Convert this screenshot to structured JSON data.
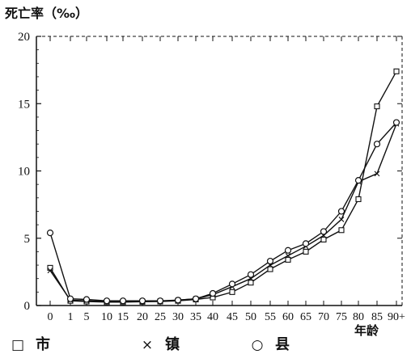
{
  "chart_data": {
    "type": "line",
    "ylabel": "死亡率（‰）",
    "xlabel": "年龄",
    "ylim": [
      0,
      20
    ],
    "yticks": [
      "0",
      "5",
      "10",
      "15",
      "20"
    ],
    "x": [
      "0",
      "1",
      "5",
      "10",
      "15",
      "20",
      "25",
      "30",
      "35",
      "40",
      "45",
      "50",
      "55",
      "60",
      "65",
      "70",
      "75",
      "80",
      "85",
      "90+"
    ],
    "series": [
      {
        "name": "市",
        "marker": "□",
        "values": [
          2.8,
          0.35,
          0.3,
          0.25,
          0.25,
          0.28,
          0.3,
          0.35,
          0.45,
          0.6,
          1.0,
          1.7,
          2.7,
          3.4,
          4.0,
          4.9,
          5.6,
          7.9,
          14.8,
          17.4
        ]
      },
      {
        "name": "镇",
        "marker": "×",
        "values": [
          2.6,
          0.4,
          0.35,
          0.3,
          0.3,
          0.3,
          0.32,
          0.4,
          0.5,
          0.8,
          1.4,
          2.0,
          3.0,
          3.7,
          4.4,
          5.2,
          6.4,
          9.2,
          9.8,
          13.5
        ]
      },
      {
        "name": "县",
        "marker": "○",
        "values": [
          5.4,
          0.5,
          0.45,
          0.35,
          0.35,
          0.35,
          0.35,
          0.4,
          0.5,
          0.9,
          1.6,
          2.3,
          3.3,
          4.1,
          4.6,
          5.5,
          7.0,
          9.3,
          12.0,
          13.6
        ]
      }
    ],
    "grid": false,
    "legend_position": "bottom"
  }
}
